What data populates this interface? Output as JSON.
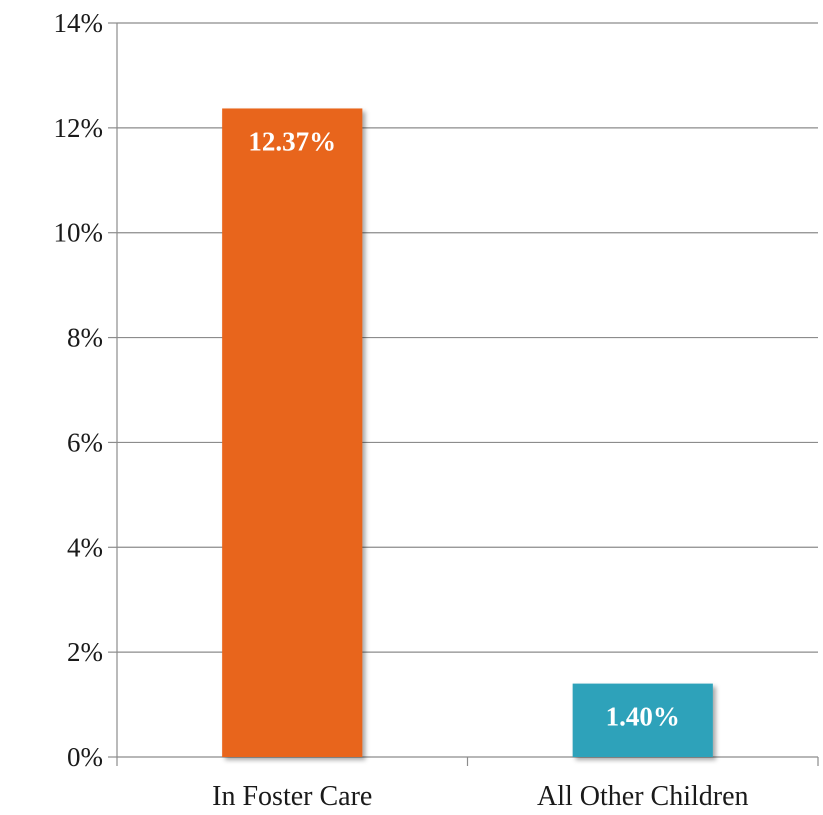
{
  "chart_data": {
    "type": "bar",
    "title": "",
    "xlabel": "",
    "ylabel": "",
    "categories": [
      "In Foster Care",
      "All Other Children"
    ],
    "values": [
      12.37,
      1.4
    ],
    "data_labels": [
      "12.37%",
      "1.40%"
    ],
    "colors": [
      "#E8651E",
      "#2FA2BA"
    ],
    "ylim": [
      0,
      14
    ],
    "yticks": [
      0,
      2,
      4,
      6,
      8,
      10,
      12,
      14
    ],
    "ytick_labels": [
      "0%",
      "2%",
      "4%",
      "6%",
      "8%",
      "10%",
      "12%",
      "14%"
    ],
    "grid": true,
    "legend": "none"
  }
}
